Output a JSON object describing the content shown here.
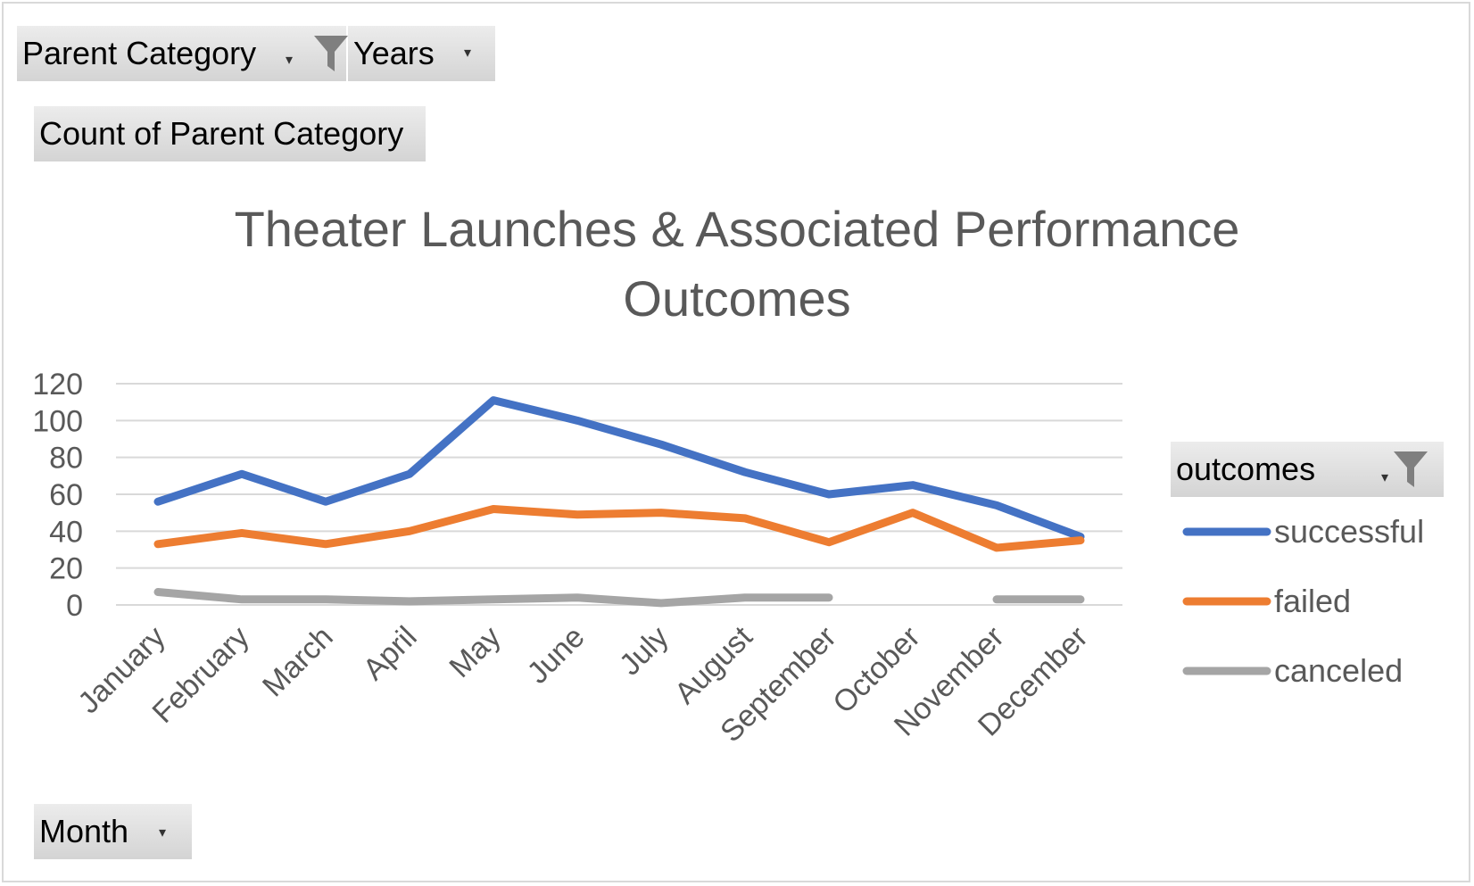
{
  "filters": {
    "parent_category": {
      "label": "Parent Category",
      "icon": "funnel-icon"
    },
    "years": {
      "label": "Years",
      "icon": "chevron-down-icon"
    },
    "value_field": {
      "label": "Count of Parent Category"
    },
    "month": {
      "label": "Month",
      "icon": "chevron-down-icon"
    },
    "legend_field": {
      "label": "outcomes",
      "icon": "funnel-icon"
    }
  },
  "chart_data": {
    "type": "line",
    "title": "Theater Launches & Associated Performance Outcomes",
    "title_lines": [
      "Theater Launches & Associated Performance",
      "Outcomes"
    ],
    "categories": [
      "January",
      "February",
      "March",
      "April",
      "May",
      "June",
      "July",
      "August",
      "September",
      "October",
      "November",
      "December"
    ],
    "series": [
      {
        "name": "successful",
        "color": "#4472c4",
        "values": [
          56,
          71,
          56,
          71,
          111,
          100,
          87,
          72,
          60,
          65,
          54,
          37
        ]
      },
      {
        "name": "failed",
        "color": "#ed7d31",
        "values": [
          33,
          39,
          33,
          40,
          52,
          49,
          50,
          47,
          34,
          50,
          31,
          35
        ]
      },
      {
        "name": "canceled",
        "color": "#a5a5a5",
        "values": [
          7,
          3,
          3,
          2,
          3,
          4,
          1,
          4,
          4,
          null,
          3,
          3
        ]
      }
    ],
    "ylim": [
      0,
      120
    ],
    "yticks": [
      "0",
      "20",
      "40",
      "60",
      "80",
      "100",
      "120"
    ],
    "grid": true,
    "legend_position": "right"
  }
}
